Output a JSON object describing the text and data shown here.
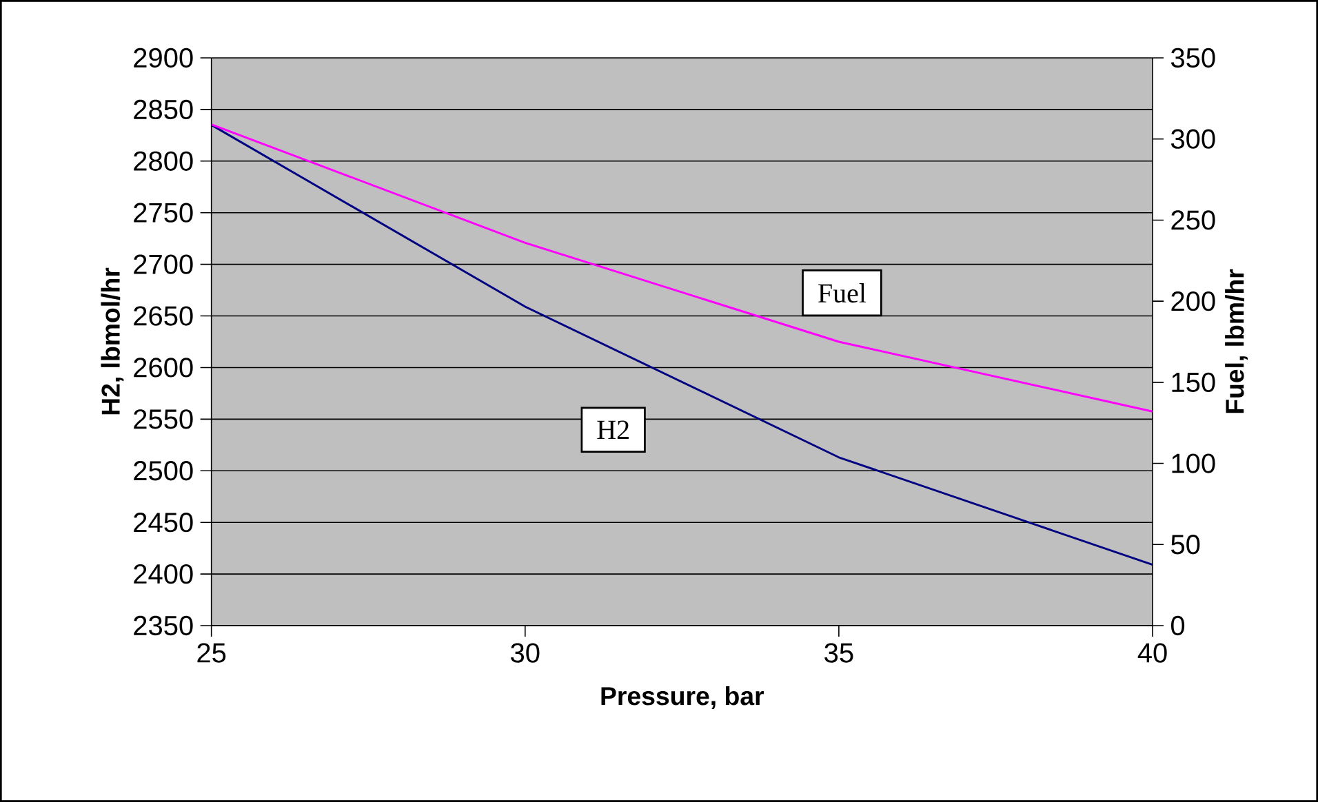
{
  "chart_data": {
    "type": "line",
    "xlabel": "Pressure, bar",
    "ylabel": "H2, lbmol/hr",
    "y2label": "Fuel, lbm/hr",
    "x": [
      25,
      30,
      35,
      40
    ],
    "series": [
      {
        "name": "H2",
        "color": "#000080",
        "values": [
          2835,
          2659,
          2513,
          2409
        ]
      },
      {
        "name": "Fuel",
        "color": "#ff00ff",
        "values": [
          309,
          236,
          175,
          132
        ],
        "axis": "y2"
      }
    ],
    "xlim": [
      25,
      40
    ],
    "xticks": [
      25,
      30,
      35,
      40
    ],
    "ylim": [
      2350,
      2900
    ],
    "yticks": [
      2350,
      2400,
      2450,
      2500,
      2550,
      2600,
      2650,
      2700,
      2750,
      2800,
      2850,
      2900
    ],
    "y2lim": [
      0,
      350
    ],
    "y2ticks": [
      0,
      50,
      100,
      150,
      200,
      250,
      300,
      350
    ],
    "grid": "y",
    "legend": false,
    "marker": "none",
    "line_style": "solid"
  }
}
